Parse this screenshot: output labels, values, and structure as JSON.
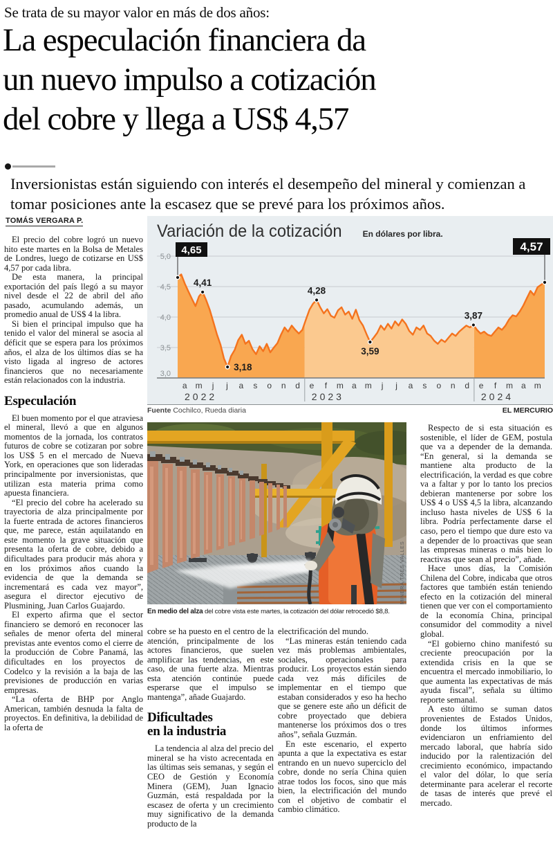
{
  "page": {
    "kicker": "Se trata de su mayor valor en más de dos años:",
    "headline_lines": [
      "La especulación financiera da",
      "un nuevo impulso a cotización",
      "del cobre y llega a US$ 4,57"
    ],
    "lede": "Inversionistas están siguiendo con interés el desempeño del mineral y comienzan a tomar posiciones ante la escasez que se prevé para los próximos años.",
    "byline": "TOMÁS VERGARA P."
  },
  "chart_data": {
    "type": "area",
    "title": "Variación de la cotización",
    "unit_label": "En dólares por libra.",
    "source_bold": "Fuente",
    "source_rest": " Cochilco, Rueda diaria",
    "credit": "EL MERCURIO",
    "ylim": [
      3.0,
      5.0
    ],
    "ytick_labels": [
      "5,0",
      "4,5",
      "4,0",
      "3,5",
      "3,0"
    ],
    "yticks": [
      5.0,
      4.5,
      4.0,
      3.5,
      3.0
    ],
    "month_labels": [
      "a",
      "m",
      "j",
      "j",
      "a",
      "s",
      "o",
      "n",
      "d",
      "e",
      "f",
      "m",
      "a",
      "m",
      "j",
      "j",
      "a",
      "s",
      "o",
      "n",
      "d",
      "e",
      "f",
      "m",
      "a",
      "m"
    ],
    "year_groups": [
      {
        "label": "2022",
        "months": 9
      },
      {
        "label": "2023",
        "months": 12
      },
      {
        "label": "2024",
        "months": 5
      }
    ],
    "values_weekly": [
      4.65,
      4.7,
      4.55,
      4.42,
      4.3,
      4.18,
      4.34,
      4.41,
      4.28,
      4.12,
      3.92,
      3.72,
      3.55,
      3.32,
      3.18,
      3.36,
      3.46,
      3.62,
      3.71,
      3.56,
      3.61,
      3.47,
      3.39,
      3.52,
      3.44,
      3.56,
      3.42,
      3.5,
      3.57,
      3.71,
      3.83,
      3.76,
      3.86,
      3.79,
      3.73,
      3.79,
      3.96,
      4.12,
      4.22,
      4.28,
      4.16,
      4.06,
      4.13,
      4.02,
      3.99,
      4.11,
      4.16,
      4.04,
      4.09,
      3.97,
      4.12,
      3.95,
      3.86,
      3.72,
      3.59,
      3.66,
      3.74,
      3.86,
      3.79,
      3.89,
      3.81,
      3.93,
      3.86,
      3.96,
      3.89,
      3.77,
      3.71,
      3.83,
      3.79,
      3.86,
      3.73,
      3.69,
      3.61,
      3.56,
      3.63,
      3.59,
      3.66,
      3.73,
      3.69,
      3.76,
      3.81,
      3.86,
      3.83,
      3.87,
      3.79,
      3.73,
      3.76,
      3.71,
      3.69,
      3.76,
      3.83,
      3.79,
      3.86,
      3.96,
      4.03,
      4.01,
      4.09,
      4.19,
      4.31,
      4.43,
      4.36,
      4.49,
      4.53,
      4.57
    ],
    "callouts": [
      {
        "index": 0,
        "label": "4,65",
        "style": "box"
      },
      {
        "index": 7,
        "label": "4,41",
        "style": "above"
      },
      {
        "index": 14,
        "label": "3,18",
        "style": "right"
      },
      {
        "index": 39,
        "label": "4,28",
        "style": "above"
      },
      {
        "index": 54,
        "label": "3,59",
        "style": "below"
      },
      {
        "index": 83,
        "label": "3,87",
        "style": "above"
      },
      {
        "index": 103,
        "label": "4,57",
        "style": "box"
      }
    ],
    "colors": {
      "line": "#f4731e",
      "fill_dark": "#f9a750",
      "fill_light": "#fbc98f",
      "panel_bg": "#e9eef1",
      "grid": "#c6cbce",
      "axis": "#75797c",
      "label": "#1c1c1c",
      "tick": "#8b9094"
    }
  },
  "photo": {
    "caption_bold": "En medio del alza",
    "caption_rest": " del cobre vista este martes, la cotización del dólar retrocedió $8,8.",
    "credit": "MINERA TRES VALLES"
  },
  "columns": {
    "col1": {
      "blocks": [
        {
          "t": "p",
          "x": "El precio del cobre logró un nuevo hito este martes en la Bolsa de Metales de Londres, luego de cotizarse en US$ 4,57 por cada libra."
        },
        {
          "t": "p",
          "x": "De esta manera, la principal exportación del país llegó a su mayor nivel desde el 22 de abril del año pasado, acumulando además, un promedio anual de US$ 4 la libra."
        },
        {
          "t": "p",
          "x": "Si bien el principal impulso que ha tenido el valor del mineral se asocia al déficit que se espera para los próximos años, el alza de los últimos días se ha visto ligada al ingreso de actores financieros que no necesariamente están relacionados con la industria."
        },
        {
          "t": "h",
          "lines": [
            "Especulación"
          ]
        },
        {
          "t": "p",
          "x": "El buen momento por el que atraviesa el mineral, llevó a que en algunos momentos de la jornada, los contratos futuros de cobre se cotizaran por sobre los US$ 5 en el mercado de Nueva York, en operaciones que son lideradas principalmente por inversionistas, que utilizan esta materia prima como apuesta financiera."
        },
        {
          "t": "p",
          "x": "“El precio del cobre ha acelerado su trayectoria de alza principalmente por la fuerte entrada de actores financieros que, me parece, están aquilatando en este momento la grave situación que presenta la oferta de cobre, debido a dificultades para producir más ahora y en los próximos años cuando la evidencia de que la demanda se incrementará es cada vez mayor”, asegura el director ejecutivo de Plusmining, Juan Carlos Guajardo."
        },
        {
          "t": "p",
          "x": "El experto afirma que el sector financiero se demoró en reconocer las señales de menor oferta del mineral previstas ante eventos como el cierre de la producción de Cobre Panamá, las dificultades en los proyectos de Codelco y la revisión a la baja de las previsiones de producción en varias empresas."
        },
        {
          "t": "p",
          "x": "“La oferta de BHP por Anglo American, también desnuda la falta de proyectos. En definitiva, la debilidad de la oferta de"
        }
      ]
    },
    "col2": {
      "blocks": [
        {
          "t": "pc",
          "x": "cobre se ha puesto en el centro de la atención, principalmente de los actores financieros, que suelen amplificar las tendencias, en este caso, de una fuerte alza. Mientras esta atención continúe puede esperarse que el impulso se mantenga”, añade Guajardo."
        },
        {
          "t": "h",
          "lines": [
            "Dificultades",
            "en la industria"
          ]
        },
        {
          "t": "p",
          "x": "La tendencia al alza del precio del mineral se ha visto acrecentada en las últimas seis semanas, y según el CEO de Gestión y Economía Minera (GEM), Juan Ignacio Guzmán, está respaldada por la escasez de oferta y un crecimiento muy significativo de la demanda producto de la"
        }
      ]
    },
    "col3": {
      "blocks": [
        {
          "t": "pc",
          "x": "electrificación del mundo."
        },
        {
          "t": "p",
          "x": "“Las mineras están teniendo cada vez más problemas ambientales, sociales, operacionales para producir. Los proyectos están siendo cada vez más difíciles de implementar en el tiempo que estaban considerados y eso ha hecho que se genere este año un déficit de cobre proyectado que debiera mantenerse los próximos dos o tres años”, señala Guzmán."
        },
        {
          "t": "p",
          "x": "En este escenario, el experto apunta a que la expectativa es estar entrando en un nuevo superciclo del cobre, donde no sería China quien atrae todos los focos, sino que más bien, la electrificación del mundo con el objetivo de combatir el cambio climático."
        }
      ]
    },
    "col4": {
      "blocks": [
        {
          "t": "p",
          "x": "Respecto de si esta situación es sostenible, el líder de GEM, postula que va a depender de la demanda. “En general, si la demanda se mantiene alta producto de la electrificación, la verdad es que cobre va a faltar y por lo tanto los precios debieran mantenerse por sobre los US$ 4 o US$ 4,5 la libra, alcanzando incluso hasta niveles de US$ 6 la libra. Podría perfectamente darse el caso, pero el tiempo que dure esto va a depender de lo proactivas que sean las empresas mineras o más bien lo reactivas que sean al precio”, añade."
        },
        {
          "t": "p",
          "x": "Hace unos días, la Comisión Chilena del Cobre, indicaba que otros factores que también están teniendo efecto en la cotización del mineral tienen que ver con el comportamiento de la economía China, principal consumidor del commodity a nivel global."
        },
        {
          "t": "p",
          "x": "“El gobierno chino manifestó su creciente preocupación por la extendida crisis en la que se encuentra el mercado inmobiliario, lo que aumenta las expectativas de más ayuda fiscal”, señala su último reporte semanal."
        },
        {
          "t": "p",
          "x": "A esto último se suman datos provenientes de Estados Unidos, donde los últimos informes evidenciaron un enfriamiento del mercado laboral, que habría sido inducido por la ralentización del crecimiento económico, impactando el valor del dólar, lo que sería determinante para acelerar el recorte de tasas de interés que prevé el mercado."
        }
      ]
    }
  }
}
